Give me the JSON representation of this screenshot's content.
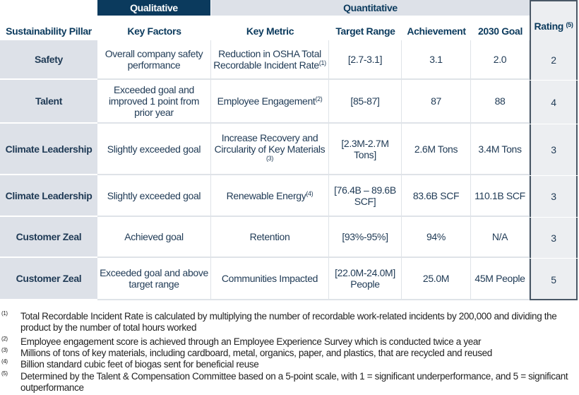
{
  "bands": {
    "qualitative": "Qualitative",
    "quantitative": "Quantitative"
  },
  "headers": {
    "pillar": "Sustainability Pillar",
    "key_factors": "Key Factors",
    "key_metric": "Key Metric",
    "target_range": "Target Range",
    "achievement": "Achievement",
    "goal_2030": "2030 Goal",
    "rating": "Rating",
    "rating_note": "(5)"
  },
  "rows": [
    {
      "pillar": "Safety",
      "key_factors": "Overall company safety performance",
      "key_metric": "Reduction in OSHA Total Recordable Incident Rate",
      "metric_note": "(1)",
      "target_range": "[2.7-3.1]",
      "achievement": "3.1",
      "goal_2030": "2.0",
      "rating": "2"
    },
    {
      "pillar": "Talent",
      "key_factors": "Exceeded goal and improved 1 point from prior year",
      "key_metric": "Employee Engagement",
      "metric_note": "(2)",
      "target_range": "[85-87]",
      "achievement": "87",
      "goal_2030": "88",
      "rating": "4"
    },
    {
      "pillar": "Climate Leadership",
      "key_factors": "Slightly exceeded goal",
      "key_metric": "Increase Recovery and Circularity of Key Materials",
      "metric_note": "(3)",
      "target_range": "[2.3M-2.7M Tons]",
      "achievement": "2.6M Tons",
      "goal_2030": "3.4M Tons",
      "rating": "3"
    },
    {
      "pillar": "Climate Leadership",
      "key_factors": "Slightly exceeded goal",
      "key_metric": "Renewable Energy",
      "metric_note": "(4)",
      "target_range": "[76.4B – 89.6B SCF]",
      "achievement": "83.6B SCF",
      "goal_2030": "110.1B SCF",
      "rating": "3"
    },
    {
      "pillar": "Customer Zeal",
      "key_factors": "Achieved goal",
      "key_metric": "Retention",
      "metric_note": "",
      "target_range": "[93%-95%]",
      "achievement": "94%",
      "goal_2030": "N/A",
      "rating": "3"
    },
    {
      "pillar": "Customer Zeal",
      "key_factors": "Exceeded goal and above target range",
      "key_metric": "Communities Impacted",
      "metric_note": "",
      "target_range": "[22.0M-24.0M] People",
      "achievement": "25.0M",
      "goal_2030": "45M People",
      "rating": "5"
    }
  ],
  "footnotes": [
    {
      "n": "(1)",
      "text": "Total Recordable Incident Rate is calculated by multiplying the number of recordable work-related incidents by 200,000 and dividing the product by the number of total hours worked"
    },
    {
      "n": "(2)",
      "text": "Employee engagement score is achieved through an Employee Experience Survey which is conducted twice a year"
    },
    {
      "n": "(3)",
      "text": "Millions of tons of key materials, including cardboard, metal, organics, paper, and plastics, that are recycled and reused"
    },
    {
      "n": "(4)",
      "text": "Billion standard cubic feet of biogas sent for beneficial reuse"
    },
    {
      "n": "(5)",
      "text": "Determined by the Talent & Compensation Committee based on a 5-point scale, with 1 = significant underperformance, and 5 = significant outperformance"
    }
  ],
  "colors": {
    "navy": "#0b3a5d",
    "light": "#dde1e8",
    "text": "#1f3a55"
  }
}
